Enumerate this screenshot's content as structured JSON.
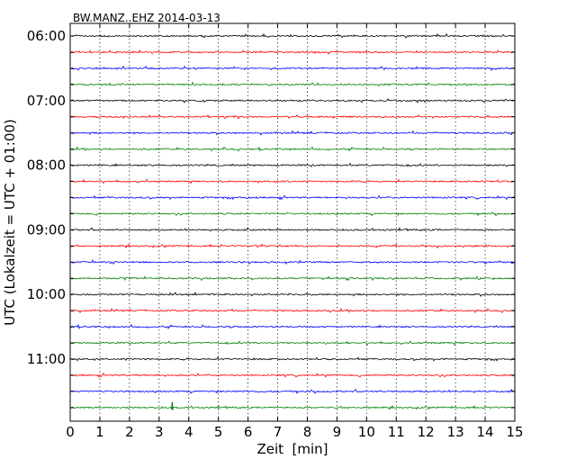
{
  "chart_data": {
    "type": "line",
    "title": "BW.MANZ..EHZ 2014-03-13",
    "xlabel": "Zeit  [min]",
    "ylabel": "UTC (Lokalzeit = UTC + 01:00)",
    "xlim": [
      0,
      15
    ],
    "x_ticks": [
      "0",
      "1",
      "2",
      "3",
      "4",
      "5",
      "6",
      "7",
      "8",
      "9",
      "10",
      "11",
      "12",
      "13",
      "14",
      "15"
    ],
    "y_tick_labels": [
      "06:00",
      "07:00",
      "08:00",
      "09:00",
      "10:00",
      "11:00"
    ],
    "row_start_times": [
      "06:00",
      "06:15",
      "06:30",
      "06:45",
      "07:00",
      "07:15",
      "07:30",
      "07:45",
      "08:00",
      "08:15",
      "08:30",
      "08:45",
      "09:00",
      "09:15",
      "09:30",
      "09:45",
      "10:00",
      "10:15",
      "10:30",
      "10:45",
      "11:00",
      "11:15",
      "11:30",
      "11:45"
    ],
    "trace_colors": [
      "#000000",
      "#ff0000",
      "#0000ff",
      "#008000"
    ],
    "grid": "vertical dotted"
  }
}
